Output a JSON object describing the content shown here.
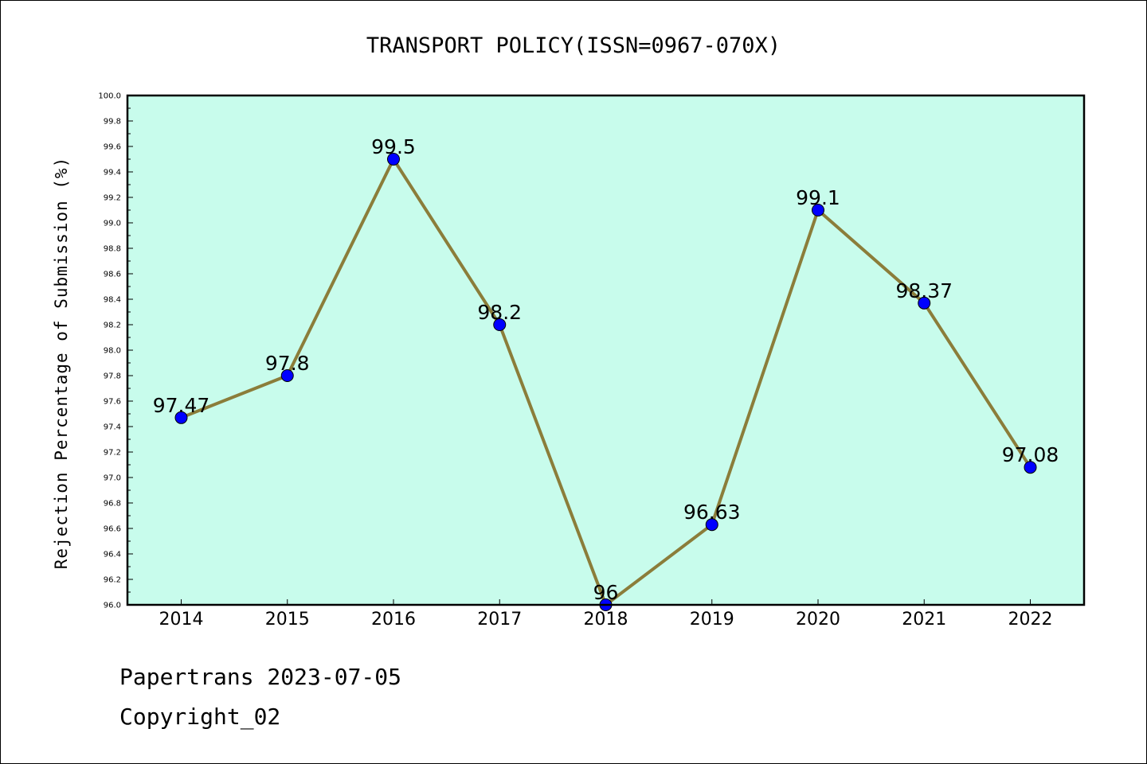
{
  "chart_data": {
    "type": "line",
    "title": "TRANSPORT POLICY(ISSN=0967-070X)",
    "xlabel": "",
    "ylabel": "Rejection Percentage of Submission (%)",
    "categories": [
      "2014",
      "2015",
      "2016",
      "2017",
      "2018",
      "2019",
      "2020",
      "2021",
      "2022"
    ],
    "series": [
      {
        "values": [
          97.47,
          97.8,
          99.5,
          98.2,
          96.0,
          96.63,
          99.1,
          98.37,
          97.08
        ]
      }
    ],
    "data_labels": [
      "97.47",
      "97.8",
      "99.5",
      "98.2",
      "96",
      "96.63",
      "99.1",
      "98.37",
      "97.08"
    ],
    "ylim": [
      96.0,
      100.0
    ],
    "yticks": [
      "96.0",
      "96.2",
      "96.4",
      "96.6",
      "96.8",
      "97.0",
      "97.2",
      "97.4",
      "97.6",
      "97.8",
      "98.0",
      "98.2",
      "98.4",
      "98.6",
      "98.8",
      "99.0",
      "99.2",
      "99.4",
      "99.6",
      "99.8",
      "100.0"
    ],
    "grid": false,
    "colors": {
      "plot_background": "#c8fcec",
      "line": "#8b7d3a",
      "marker": "#0000ff"
    }
  },
  "footer": {
    "line1": "Papertrans 2023-07-05",
    "line2": "Copyright_02"
  }
}
